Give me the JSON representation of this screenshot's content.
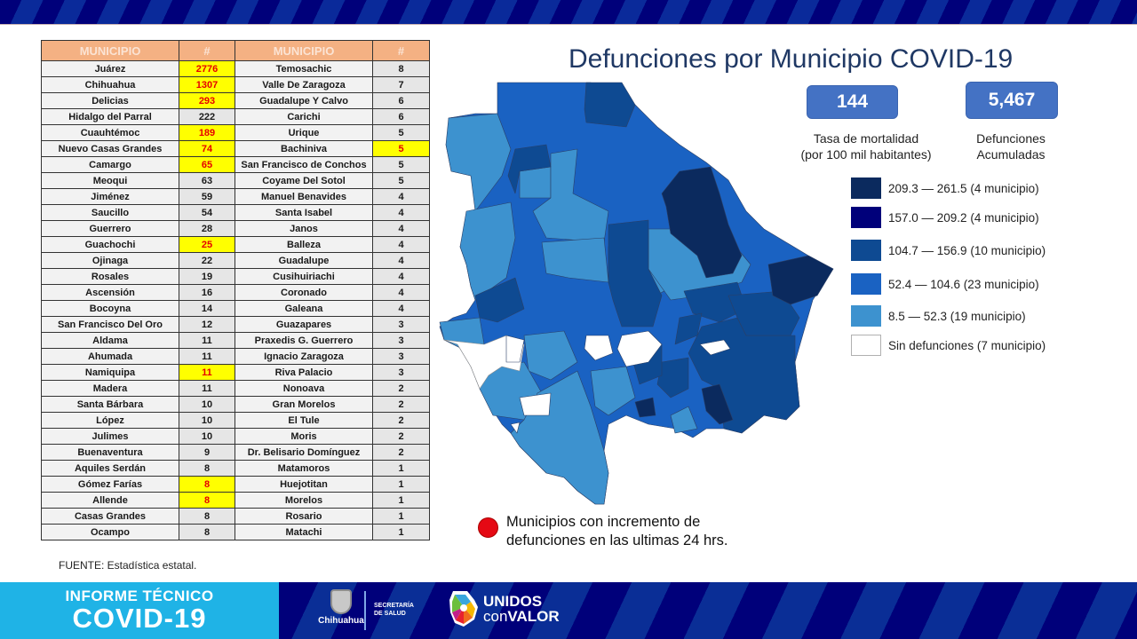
{
  "title": "Defunciones por Municipio COVID-19",
  "table": {
    "headers": [
      "MUNICIPIO",
      "#",
      "MUNICIPIO",
      "#"
    ],
    "rows": [
      {
        "m1": "Juárez",
        "n1": "2776",
        "h1": true,
        "m2": "Temosachic",
        "n2": "8",
        "h2": false
      },
      {
        "m1": "Chihuahua",
        "n1": "1307",
        "h1": true,
        "m2": "Valle De Zaragoza",
        "n2": "7",
        "h2": false
      },
      {
        "m1": "Delicias",
        "n1": "293",
        "h1": true,
        "m2": "Guadalupe Y Calvo",
        "n2": "6",
        "h2": false
      },
      {
        "m1": "Hidalgo del Parral",
        "n1": "222",
        "h1": false,
        "m2": "Carichi",
        "n2": "6",
        "h2": false
      },
      {
        "m1": "Cuauhtémoc",
        "n1": "189",
        "h1": true,
        "m2": "Urique",
        "n2": "5",
        "h2": false
      },
      {
        "m1": "Nuevo Casas Grandes",
        "n1": "74",
        "h1": true,
        "m2": "Bachiniva",
        "n2": "5",
        "h2": true
      },
      {
        "m1": "Camargo",
        "n1": "65",
        "h1": true,
        "m2": "San Francisco de Conchos",
        "n2": "5",
        "h2": false
      },
      {
        "m1": "Meoqui",
        "n1": "63",
        "h1": false,
        "m2": "Coyame Del Sotol",
        "n2": "5",
        "h2": false
      },
      {
        "m1": "Jiménez",
        "n1": "59",
        "h1": false,
        "m2": "Manuel Benavides",
        "n2": "4",
        "h2": false
      },
      {
        "m1": "Saucillo",
        "n1": "54",
        "h1": false,
        "m2": "Santa Isabel",
        "n2": "4",
        "h2": false
      },
      {
        "m1": "Guerrero",
        "n1": "28",
        "h1": false,
        "m2": "Janos",
        "n2": "4",
        "h2": false
      },
      {
        "m1": "Guachochi",
        "n1": "25",
        "h1": true,
        "m2": "Balleza",
        "n2": "4",
        "h2": false
      },
      {
        "m1": "Ojinaga",
        "n1": "22",
        "h1": false,
        "m2": "Guadalupe",
        "n2": "4",
        "h2": false
      },
      {
        "m1": "Rosales",
        "n1": "19",
        "h1": false,
        "m2": "Cusihuiriachi",
        "n2": "4",
        "h2": false
      },
      {
        "m1": "Ascensión",
        "n1": "16",
        "h1": false,
        "m2": "Coronado",
        "n2": "4",
        "h2": false
      },
      {
        "m1": "Bocoyna",
        "n1": "14",
        "h1": false,
        "m2": "Galeana",
        "n2": "4",
        "h2": false
      },
      {
        "m1": "San Francisco Del Oro",
        "n1": "12",
        "h1": false,
        "m2": "Guazapares",
        "n2": "3",
        "h2": false
      },
      {
        "m1": "Aldama",
        "n1": "11",
        "h1": false,
        "m2": "Praxedis G. Guerrero",
        "n2": "3",
        "h2": false
      },
      {
        "m1": "Ahumada",
        "n1": "11",
        "h1": false,
        "m2": "Ignacio Zaragoza",
        "n2": "3",
        "h2": false
      },
      {
        "m1": "Namiquipa",
        "n1": "11",
        "h1": true,
        "m2": "Riva Palacio",
        "n2": "3",
        "h2": false
      },
      {
        "m1": "Madera",
        "n1": "11",
        "h1": false,
        "m2": "Nonoava",
        "n2": "2",
        "h2": false
      },
      {
        "m1": "Santa Bárbara",
        "n1": "10",
        "h1": false,
        "m2": "Gran Morelos",
        "n2": "2",
        "h2": false
      },
      {
        "m1": "López",
        "n1": "10",
        "h1": false,
        "m2": "El Tule",
        "n2": "2",
        "h2": false
      },
      {
        "m1": "Julimes",
        "n1": "10",
        "h1": false,
        "m2": "Moris",
        "n2": "2",
        "h2": false
      },
      {
        "m1": "Buenaventura",
        "n1": "9",
        "h1": false,
        "m2": "Dr. Belisario Domínguez",
        "n2": "2",
        "h2": false
      },
      {
        "m1": "Aquiles Serdán",
        "n1": "8",
        "h1": false,
        "m2": "Matamoros",
        "n2": "1",
        "h2": false
      },
      {
        "m1": "Gómez Farías",
        "n1": "8",
        "h1": true,
        "m2": "Huejotitan",
        "n2": "1",
        "h2": false
      },
      {
        "m1": "Allende",
        "n1": "8",
        "h1": true,
        "m2": "Morelos",
        "n2": "1",
        "h2": false
      },
      {
        "m1": "Casas Grandes",
        "n1": "8",
        "h1": false,
        "m2": "Rosario",
        "n2": "1",
        "h2": false
      },
      {
        "m1": "Ocampo",
        "n1": "8",
        "h1": false,
        "m2": "Matachi",
        "n2": "1",
        "h2": false
      }
    ],
    "source": "FUENTE:  Estadística estatal."
  },
  "stats": {
    "rate_value": "144",
    "rate_label_1": "Tasa de mortalidad",
    "rate_label_2": "(por 100 mil habitantes)",
    "total_value": "5,467",
    "total_label_1": "Defunciones",
    "total_label_2": "Acumuladas"
  },
  "legend": [
    {
      "label": "209.3 — 261.5 (4 municipio)",
      "color": "#0b2a5e"
    },
    {
      "label": "157.0 — 209.2 (4 municipio)",
      "color": "#00007a"
    },
    {
      "label": "104.7 — 156.9 (10 municipio)",
      "color": "#0e4a92"
    },
    {
      "label": "52.4 — 104.6 (23 municipio)",
      "color": "#1a62c2"
    },
    {
      "label": "8.5 — 52.3 (19 municipio)",
      "color": "#3d92cf"
    },
    {
      "label": "Sin defunciones (7 municipio)",
      "color": "#ffffff"
    }
  ],
  "increment_note": {
    "line1": "Municipios con incremento de",
    "line2": "defunciones en las ultimas 24 hrs.",
    "color": "#e50914"
  },
  "footer": {
    "line1": "INFORME TÉCNICO",
    "line2": "COVID-19",
    "chihuahua": "Chihuahua",
    "secretaria_1": "SECRETARÍA",
    "secretaria_2": "DE SALUD",
    "unidos_1": "UNIDOS",
    "unidos_2a": "con",
    "unidos_2b": "VALOR"
  },
  "chart_data": {
    "type": "table",
    "title": "Defunciones por Municipio COVID-19",
    "columns": [
      "Municipio",
      "Defunciones"
    ],
    "values": [
      [
        "Juárez",
        2776
      ],
      [
        "Chihuahua",
        1307
      ],
      [
        "Delicias",
        293
      ],
      [
        "Hidalgo del Parral",
        222
      ],
      [
        "Cuauhtémoc",
        189
      ],
      [
        "Nuevo Casas Grandes",
        74
      ],
      [
        "Camargo",
        65
      ],
      [
        "Meoqui",
        63
      ],
      [
        "Jiménez",
        59
      ],
      [
        "Saucillo",
        54
      ],
      [
        "Guerrero",
        28
      ],
      [
        "Guachochi",
        25
      ],
      [
        "Ojinaga",
        22
      ],
      [
        "Rosales",
        19
      ],
      [
        "Ascensión",
        16
      ],
      [
        "Bocoyna",
        14
      ],
      [
        "San Francisco Del Oro",
        12
      ],
      [
        "Aldama",
        11
      ],
      [
        "Ahumada",
        11
      ],
      [
        "Namiquipa",
        11
      ],
      [
        "Madera",
        11
      ],
      [
        "Santa Bárbara",
        10
      ],
      [
        "López",
        10
      ],
      [
        "Julimes",
        10
      ],
      [
        "Buenaventura",
        9
      ],
      [
        "Aquiles Serdán",
        8
      ],
      [
        "Gómez Farías",
        8
      ],
      [
        "Allende",
        8
      ],
      [
        "Casas Grandes",
        8
      ],
      [
        "Ocampo",
        8
      ],
      [
        "Temosachic",
        8
      ],
      [
        "Valle De Zaragoza",
        7
      ],
      [
        "Guadalupe Y Calvo",
        6
      ],
      [
        "Carichi",
        6
      ],
      [
        "Urique",
        5
      ],
      [
        "Bachiniva",
        5
      ],
      [
        "San Francisco de Conchos",
        5
      ],
      [
        "Coyame Del Sotol",
        5
      ],
      [
        "Manuel Benavides",
        4
      ],
      [
        "Santa Isabel",
        4
      ],
      [
        "Janos",
        4
      ],
      [
        "Balleza",
        4
      ],
      [
        "Guadalupe",
        4
      ],
      [
        "Cusihuiriachi",
        4
      ],
      [
        "Coronado",
        4
      ],
      [
        "Galeana",
        4
      ],
      [
        "Guazapares",
        3
      ],
      [
        "Praxedis G. Guerrero",
        3
      ],
      [
        "Ignacio Zaragoza",
        3
      ],
      [
        "Riva Palacio",
        3
      ],
      [
        "Nonoava",
        2
      ],
      [
        "Gran Morelos",
        2
      ],
      [
        "El Tule",
        2
      ],
      [
        "Moris",
        2
      ],
      [
        "Dr. Belisario Domínguez",
        2
      ],
      [
        "Matamoros",
        1
      ],
      [
        "Huejotitan",
        1
      ],
      [
        "Morelos",
        1
      ],
      [
        "Rosario",
        1
      ],
      [
        "Matachi",
        1
      ]
    ],
    "highlighted_increment_24h": [
      "Juárez",
      "Chihuahua",
      "Delicias",
      "Cuauhtémoc",
      "Nuevo Casas Grandes",
      "Camargo",
      "Guachochi",
      "Namiquipa",
      "Gómez Farías",
      "Allende",
      "Bachiniva"
    ],
    "summary": {
      "mortality_rate_per_100k": 144,
      "cumulative_deaths": 5467
    },
    "map_legend": [
      {
        "range": "209.3 — 261.5",
        "count": 4
      },
      {
        "range": "157.0 — 209.2",
        "count": 4
      },
      {
        "range": "104.7 — 156.9",
        "count": 10
      },
      {
        "range": "52.4 — 104.6",
        "count": 23
      },
      {
        "range": "8.5 — 52.3",
        "count": 19
      },
      {
        "range": "Sin defunciones",
        "count": 7
      }
    ],
    "source": "FUENTE: Estadística estatal."
  }
}
